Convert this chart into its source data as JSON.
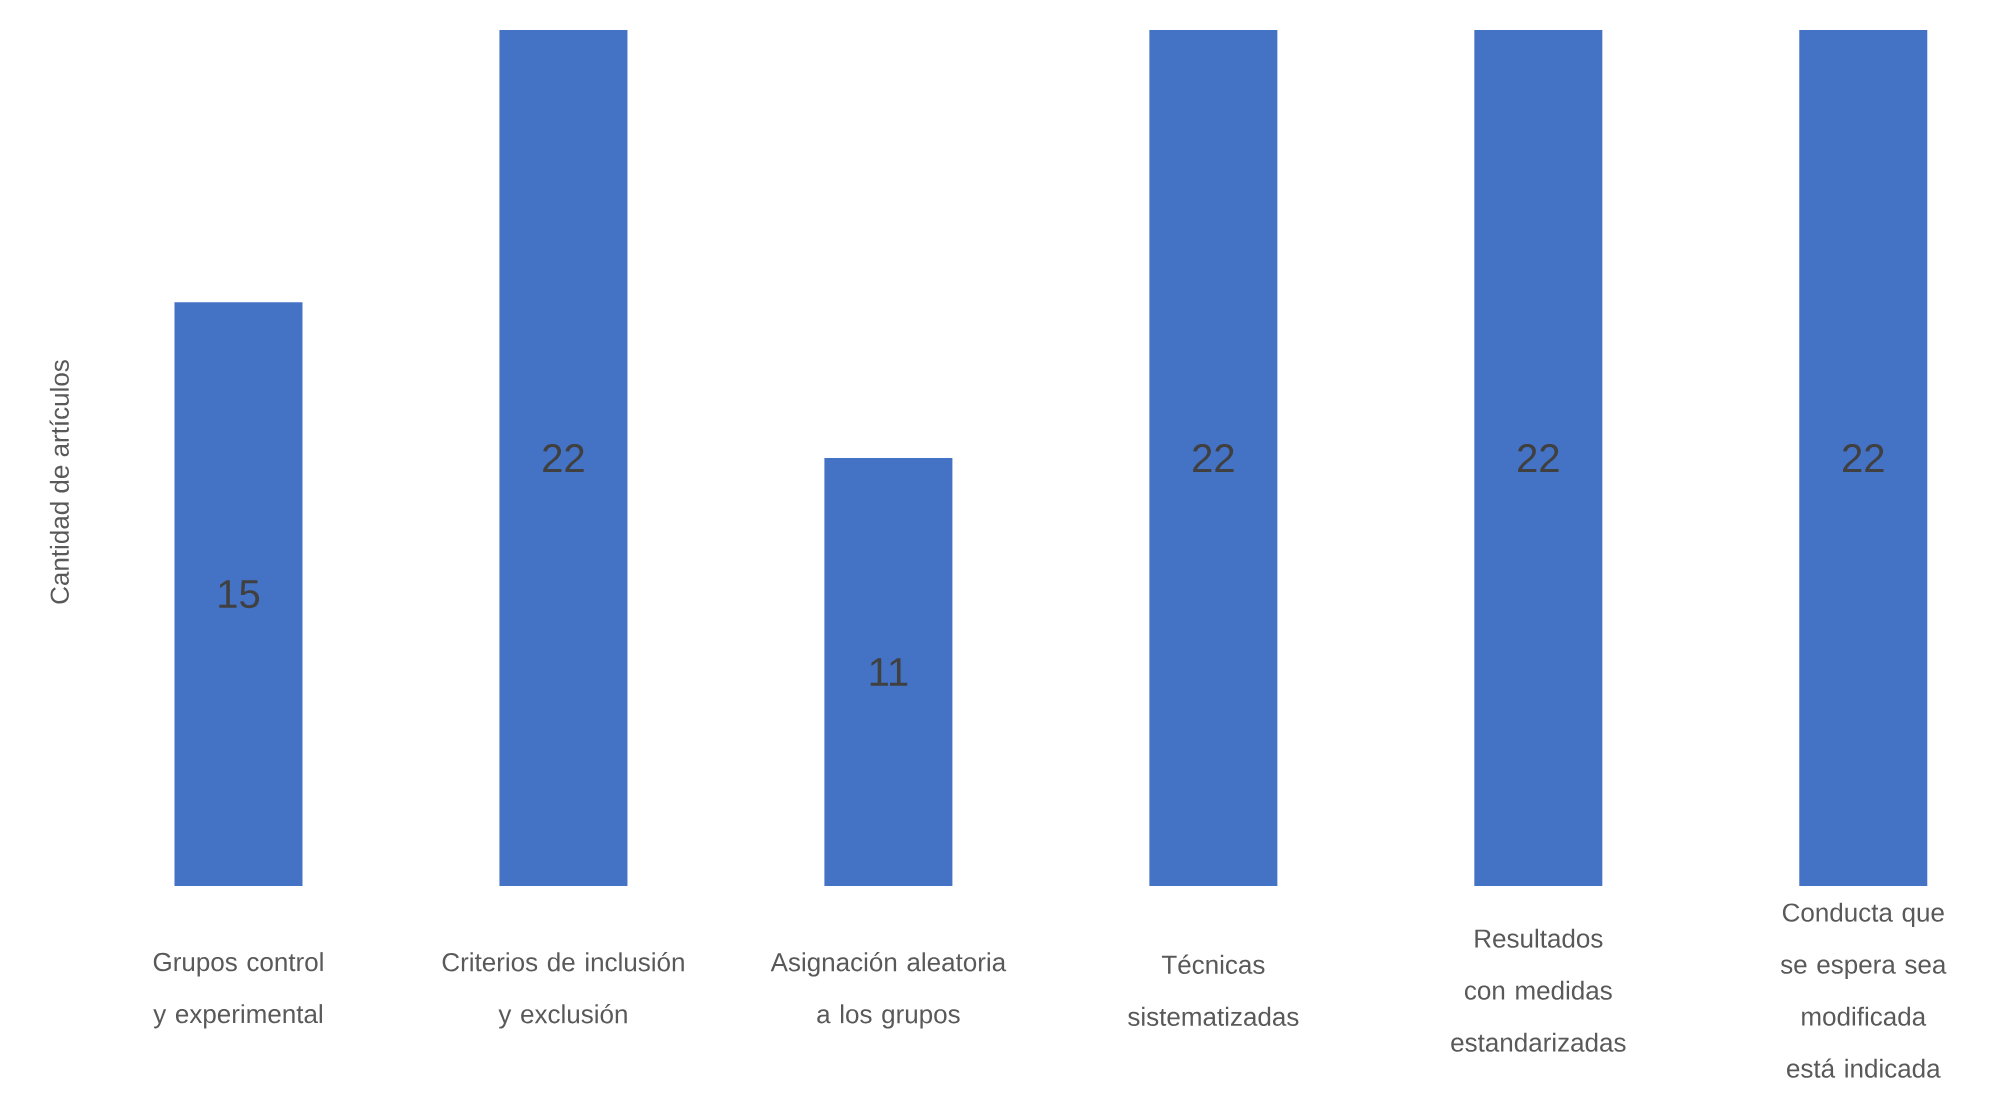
{
  "chart_data": {
    "type": "bar",
    "ylabel": "Cantidad de artículos",
    "categories": [
      "Grupos control y experimental",
      "Criterios de inclusión y exclusión",
      "Asignación aleatoria a los grupos",
      "Técnicas sistematizadas",
      "Resultados con medidas estandarizadas",
      "Conducta que se espera sea modificada está indicada"
    ],
    "values": [
      15,
      22,
      11,
      22,
      22,
      22
    ],
    "color": "#4472c4",
    "data_labels": true
  }
}
